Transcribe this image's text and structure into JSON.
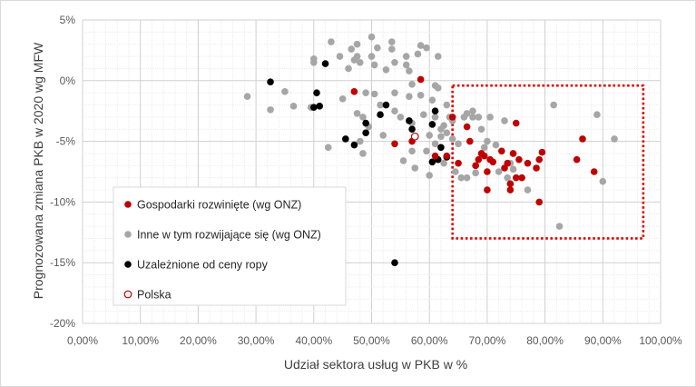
{
  "chart_data": {
    "type": "scatter",
    "xlabel": "Udział sektora usług w PKB w %",
    "ylabel": "Prognozowana zmiana PKB w 2020 wg MFW",
    "xlim": [
      0,
      100
    ],
    "ylim": [
      -20,
      5
    ],
    "x_ticks": [
      "0,00%",
      "10,00%",
      "20,00%",
      "30,00%",
      "40,00%",
      "50,00%",
      "60,00%",
      "70,00%",
      "80,00%",
      "90,00%",
      "100,00%"
    ],
    "y_ticks": [
      "5%",
      "0%",
      "-5%",
      "-10%",
      "-15%",
      "-20%"
    ],
    "grid": "both, dotted",
    "legend_position": "lower-left inside plot",
    "highlight_region": {
      "x": [
        64,
        97
      ],
      "y": [
        -13,
        -0.4
      ],
      "style": "red dotted rectangle"
    },
    "colors": {
      "developed": "#c00000",
      "other": "#a6a6a6",
      "oil": "#000000",
      "polska_edge": "#c00000",
      "grid": "#d9d9d9",
      "highlight": "#e00000"
    },
    "series": [
      {
        "name": "Gospodarki rozwinięte (wg ONZ)",
        "key": "developed",
        "points": [
          [
            47,
            -0.9
          ],
          [
            54,
            -5.2
          ],
          [
            57,
            -5.0
          ],
          [
            58.5,
            0.1
          ],
          [
            61,
            -6.2
          ],
          [
            63,
            -6.2
          ],
          [
            64,
            -3.0
          ],
          [
            65,
            -6.8
          ],
          [
            66.5,
            -3.8
          ],
          [
            67,
            -5.0
          ],
          [
            68,
            -7.0
          ],
          [
            68.5,
            -6.5
          ],
          [
            69,
            -6.0
          ],
          [
            69.5,
            -6.2
          ],
          [
            70,
            -7.5
          ],
          [
            70,
            -9.0
          ],
          [
            70.5,
            -6.5
          ],
          [
            71,
            -6.7
          ],
          [
            72.5,
            -5.8
          ],
          [
            73,
            -7.2
          ],
          [
            73.5,
            -6.8
          ],
          [
            74,
            -8.5
          ],
          [
            74,
            -9.0
          ],
          [
            74.5,
            -6.0
          ],
          [
            75,
            -3.5
          ],
          [
            75,
            -8.0
          ],
          [
            75.5,
            -6.5
          ],
          [
            76,
            -8.0
          ],
          [
            77,
            -6.8
          ],
          [
            78.5,
            -7.2
          ],
          [
            79,
            -6.5
          ],
          [
            79,
            -10.0
          ],
          [
            79.5,
            -5.9
          ],
          [
            85.5,
            -6.5
          ],
          [
            86.5,
            -4.8
          ],
          [
            88.5,
            -7.5
          ]
        ]
      },
      {
        "name": "Inne w tym rozwijające się (wg ONZ)",
        "key": "other",
        "points": [
          [
            28.5,
            -1.3
          ],
          [
            32.5,
            -2.4
          ],
          [
            35,
            -0.9
          ],
          [
            36.5,
            -2.1
          ],
          [
            39.5,
            -2.2
          ],
          [
            40,
            1.8
          ],
          [
            40,
            1.5
          ],
          [
            42.5,
            -5.5
          ],
          [
            43,
            3.2
          ],
          [
            44.5,
            2.0
          ],
          [
            45,
            -1.5
          ],
          [
            46,
            1.0
          ],
          [
            46.5,
            2.6
          ],
          [
            47,
            1.7
          ],
          [
            47.5,
            2.0
          ],
          [
            47.5,
            3.0
          ],
          [
            47.5,
            -2.7
          ],
          [
            48,
            1.5
          ],
          [
            48,
            -5.0
          ],
          [
            48.5,
            -3.0
          ],
          [
            48.5,
            -6.0
          ],
          [
            49,
            -1.0
          ],
          [
            49.5,
            -3.8
          ],
          [
            50,
            2.0
          ],
          [
            50,
            3.6
          ],
          [
            50.5,
            1.3
          ],
          [
            50.5,
            -1.1
          ],
          [
            51,
            2.7
          ],
          [
            51.5,
            -2.0
          ],
          [
            52,
            -4.5
          ],
          [
            52.5,
            0.9
          ],
          [
            53.5,
            2.6
          ],
          [
            53.5,
            3.2
          ],
          [
            54,
            1.5
          ],
          [
            54,
            -1.0
          ],
          [
            54,
            -2.5
          ],
          [
            55,
            -3.0
          ],
          [
            55.5,
            -6.6
          ],
          [
            56,
            2.0
          ],
          [
            56,
            1.3
          ],
          [
            56.5,
            0.8
          ],
          [
            56.5,
            -1.3
          ],
          [
            57,
            -0.3
          ],
          [
            57,
            -3.5
          ],
          [
            57.5,
            -7.2
          ],
          [
            58,
            2.2
          ],
          [
            58.5,
            2.9
          ],
          [
            58.5,
            -1.2
          ],
          [
            59,
            -2.8
          ],
          [
            59.5,
            2.7
          ],
          [
            59.5,
            -5.8
          ],
          [
            60,
            -4.5
          ],
          [
            60,
            -7.8
          ],
          [
            60.5,
            -1.6
          ],
          [
            61,
            -0.4
          ],
          [
            61,
            -3.0
          ],
          [
            61,
            -5.2
          ],
          [
            61.5,
            2.0
          ],
          [
            61.5,
            -0.6
          ],
          [
            62,
            -4.0
          ],
          [
            62,
            -4.6
          ],
          [
            62.5,
            -3.7
          ],
          [
            62.5,
            -6.8
          ],
          [
            63,
            -2.0
          ],
          [
            63,
            -4.3
          ],
          [
            63.5,
            -3.0
          ],
          [
            64,
            -3.3
          ],
          [
            64,
            -4.8
          ],
          [
            64.5,
            -7.5
          ],
          [
            65,
            -5.2
          ],
          [
            65.5,
            -8.0
          ],
          [
            66,
            -3.0
          ],
          [
            66.5,
            -2.7
          ],
          [
            66.5,
            -8.0
          ],
          [
            67.5,
            -2.5
          ],
          [
            67.5,
            -3.0
          ],
          [
            68,
            -7.6
          ],
          [
            68.5,
            -3.0
          ],
          [
            69,
            -4.0
          ],
          [
            69.5,
            -5.5
          ],
          [
            70,
            -5.0
          ],
          [
            70.5,
            -3.0
          ],
          [
            71.5,
            -5.3
          ],
          [
            72,
            -7.5
          ],
          [
            73,
            -3.3
          ],
          [
            73.5,
            -8.0
          ],
          [
            74,
            -6.8
          ],
          [
            74.5,
            -7.3
          ],
          [
            77,
            -9.0
          ],
          [
            81.5,
            -2.0
          ],
          [
            82.5,
            -12.0
          ],
          [
            89,
            -2.8
          ],
          [
            90,
            -8.3
          ],
          [
            92,
            -4.8
          ],
          [
            57,
            -5.8
          ]
        ]
      },
      {
        "name": "Uzależnione od ceny ropy",
        "key": "oil",
        "points": [
          [
            32.5,
            -0.1
          ],
          [
            40,
            -2.2
          ],
          [
            40.5,
            -1.0
          ],
          [
            41,
            -2.1
          ],
          [
            42,
            1.4
          ],
          [
            45.5,
            -4.8
          ],
          [
            47,
            -5.3
          ],
          [
            49,
            -4.3
          ],
          [
            49,
            -3.5
          ],
          [
            51.5,
            -2.8
          ],
          [
            52.5,
            -2.0
          ],
          [
            54,
            -15.0
          ],
          [
            56.5,
            -3.3
          ],
          [
            57,
            -4.0
          ],
          [
            60.5,
            -3.6
          ],
          [
            60.5,
            -6.7
          ],
          [
            61,
            -2.5
          ],
          [
            61.5,
            -6.5
          ],
          [
            62,
            -5.5
          ],
          [
            63,
            -6.3
          ]
        ]
      },
      {
        "name": "Polska",
        "key": "polska",
        "points": [
          [
            57.5,
            -4.6
          ]
        ]
      }
    ]
  }
}
